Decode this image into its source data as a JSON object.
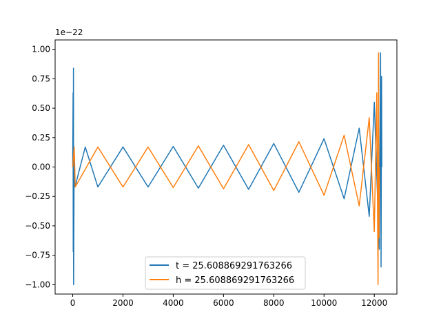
{
  "chart_data": {
    "type": "line",
    "title": "",
    "xlabel": "",
    "ylabel": "",
    "y_offset_label": "1e−22",
    "xlim": [
      -700,
      12900
    ],
    "ylim": [
      -1.08,
      1.08
    ],
    "x_ticks": [
      0,
      2000,
      4000,
      6000,
      8000,
      10000,
      12000
    ],
    "x_tick_labels": [
      "0",
      "2000",
      "4000",
      "6000",
      "8000",
      "10000",
      "12000"
    ],
    "y_ticks": [
      -1.0,
      -0.75,
      -0.5,
      -0.25,
      0.0,
      0.25,
      0.5,
      0.75,
      1.0
    ],
    "y_tick_labels": [
      "−1.00",
      "−0.75",
      "−0.50",
      "−0.25",
      "0.00",
      "0.25",
      "0.50",
      "0.75",
      "1.00"
    ],
    "grid": false,
    "legend_position": "lower-center",
    "series": [
      {
        "name": "t = 25.608869291763266",
        "color": "#1f77b4",
        "points": [
          [
            0,
            0.0
          ],
          [
            15,
            0.63
          ],
          [
            20,
            -0.72
          ],
          [
            30,
            0.84
          ],
          [
            35,
            -1.0
          ],
          [
            60,
            0.15
          ],
          [
            90,
            -0.17
          ],
          [
            500,
            0.17
          ],
          [
            1000,
            -0.17
          ],
          [
            2000,
            0.17
          ],
          [
            3000,
            -0.17
          ],
          [
            4000,
            0.175
          ],
          [
            5000,
            -0.18
          ],
          [
            6000,
            0.185
          ],
          [
            7000,
            -0.19
          ],
          [
            8000,
            0.2
          ],
          [
            9000,
            -0.215
          ],
          [
            10000,
            0.24
          ],
          [
            10800,
            -0.27
          ],
          [
            11400,
            0.33
          ],
          [
            11800,
            -0.42
          ],
          [
            12000,
            0.55
          ],
          [
            12200,
            -0.7
          ],
          [
            12250,
            0.97
          ],
          [
            12270,
            -0.85
          ],
          [
            12290,
            0.77
          ],
          [
            12300,
            0.0
          ]
        ]
      },
      {
        "name": "h = 25.608869291763266",
        "color": "#ff7f0e",
        "points": [
          [
            0,
            0.0
          ],
          [
            60,
            0.17
          ],
          [
            100,
            -0.17
          ],
          [
            1000,
            0.17
          ],
          [
            2000,
            -0.17
          ],
          [
            3000,
            0.17
          ],
          [
            4000,
            -0.175
          ],
          [
            5000,
            0.18
          ],
          [
            6000,
            -0.185
          ],
          [
            7000,
            0.19
          ],
          [
            8000,
            -0.2
          ],
          [
            9000,
            0.215
          ],
          [
            10000,
            -0.24
          ],
          [
            10800,
            0.27
          ],
          [
            11400,
            -0.33
          ],
          [
            11800,
            0.42
          ],
          [
            12000,
            -0.55
          ],
          [
            12100,
            0.63
          ],
          [
            12150,
            -1.0
          ],
          [
            12170,
            0.97
          ],
          [
            12185,
            -0.6
          ],
          [
            12200,
            0.0
          ]
        ]
      }
    ]
  }
}
